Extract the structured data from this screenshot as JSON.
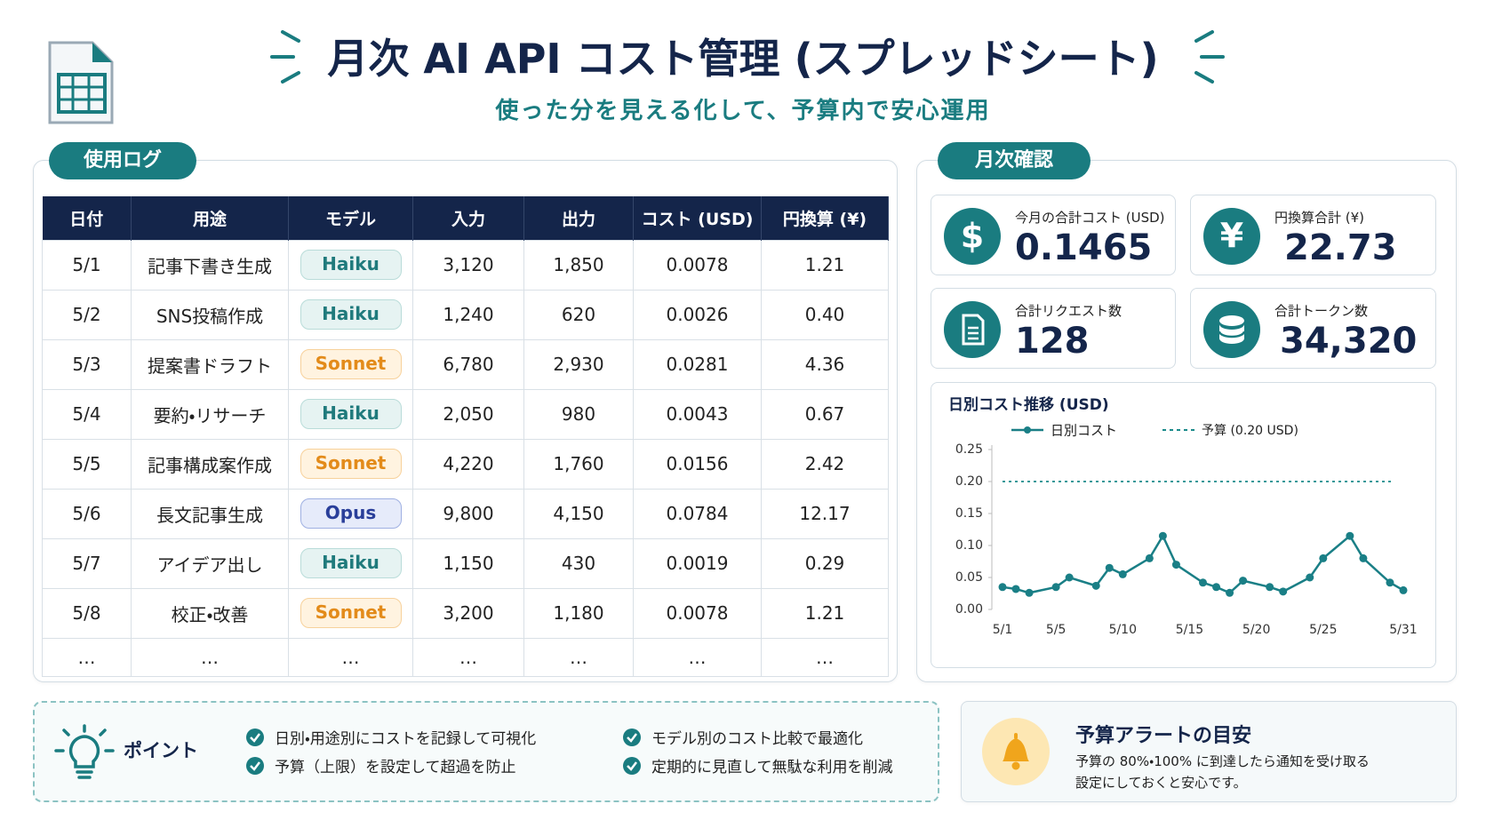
{
  "header": {
    "title": "月次 AI API コスト管理 (スプレッドシート)",
    "subtitle": "使った分を見える化して、予算内で安心運用"
  },
  "usage_log": {
    "label": "使用ログ",
    "table": {
      "columns": [
        "日付",
        "用途",
        "モデル",
        "入力",
        "出力",
        "コスト (USD)",
        "円換算 (¥)"
      ],
      "rows": [
        [
          "5/1",
          "記事下書き生成",
          "Haiku",
          "3,120",
          "1,850",
          "0.0078",
          "1.21"
        ],
        [
          "5/2",
          "SNS投稿作成",
          "Haiku",
          "1,240",
          "620",
          "0.0026",
          "0.40"
        ],
        [
          "5/3",
          "提案書ドラフト",
          "Sonnet",
          "6,780",
          "2,930",
          "0.0281",
          "4.36"
        ],
        [
          "5/4",
          "要約・リサーチ",
          "Haiku",
          "2,050",
          "980",
          "0.0043",
          "0.67"
        ],
        [
          "5/5",
          "記事構成案作成",
          "Sonnet",
          "4,220",
          "1,760",
          "0.0156",
          "2.42"
        ],
        [
          "5/6",
          "長文記事生成",
          "Opus",
          "9,800",
          "4,150",
          "0.0784",
          "12.17"
        ],
        [
          "5/7",
          "アイデア出し",
          "Haiku",
          "1,150",
          "430",
          "0.0019",
          "0.29"
        ],
        [
          "5/8",
          "校正・改善",
          "Sonnet",
          "3,200",
          "1,180",
          "0.0078",
          "1.21"
        ],
        [
          "…",
          "…",
          "…",
          "…",
          "…",
          "…",
          "…"
        ]
      ],
      "badge_colors": {
        "Haiku": {
          "bg": "#e6f3f2",
          "border": "#b9dcd9",
          "text": "#1f7a7c"
        },
        "Sonnet": {
          "bg": "#fff3e0",
          "border": "#f7d19b",
          "text": "#e38b1a"
        },
        "Opus": {
          "bg": "#e6ebfa",
          "border": "#9fb0e2",
          "text": "#2a3f9a"
        }
      }
    }
  },
  "monthly": {
    "label": "月次確認",
    "kpis": [
      {
        "icon": "$",
        "label": "今月の合計コスト (USD)",
        "value": "0.1465"
      },
      {
        "icon": "¥",
        "label": "円換算合計 (¥)",
        "value": "22.73"
      },
      {
        "label": "合計リクエスト数",
        "value": "128"
      },
      {
        "label": "合計トークン数",
        "value": "34,320"
      }
    ]
  },
  "chart_data": {
    "type": "line",
    "title": "日別コスト推移 (USD)",
    "x": [
      1,
      2,
      3,
      5,
      6,
      8,
      9,
      10,
      12,
      13,
      14,
      16,
      17,
      18,
      19,
      21,
      22,
      24,
      25,
      27,
      28,
      30,
      31
    ],
    "series": [
      {
        "name": "日別コスト",
        "color": "#1a7f86",
        "values": [
          0.035,
          0.032,
          0.026,
          0.035,
          0.05,
          0.037,
          0.065,
          0.055,
          0.08,
          0.115,
          0.07,
          0.042,
          0.035,
          0.026,
          0.045,
          0.035,
          0.028,
          0.05,
          0.08,
          0.115,
          0.08,
          0.042,
          0.03
        ]
      }
    ],
    "reference_lines": [
      {
        "name": "予算 (0.20 USD)",
        "value": 0.2,
        "color": "#1a8a8a"
      }
    ],
    "xlim": [
      1,
      31
    ],
    "xticks": [
      {
        "value": 1,
        "label": "5/1"
      },
      {
        "value": 5,
        "label": "5/5"
      },
      {
        "value": 10,
        "label": "5/10"
      },
      {
        "value": 15,
        "label": "5/15"
      },
      {
        "value": 20,
        "label": "5/20"
      },
      {
        "value": 25,
        "label": "5/25"
      },
      {
        "value": 31,
        "label": "5/31"
      }
    ],
    "ylim": [
      0,
      0.25
    ],
    "yticks": [
      {
        "value": 0,
        "label": "0.00"
      },
      0.05,
      {
        "value": 0.1,
        "label": "0.10"
      },
      0.15,
      {
        "value": 0.2,
        "label": "0.20"
      },
      0.25
    ],
    "grid": false
  },
  "points": {
    "label": "ポイント",
    "items": [
      "日別・用途別にコストを記録して可視化",
      "モデル別のコスト比較で最適化",
      "予算（上限）を設定して超過を防止",
      "定期的に見直して無駄な利用を削減"
    ]
  },
  "alert": {
    "title": "予算アラートの目安",
    "lines": [
      "予算の 80%・100% に到達したら通知を受け取る",
      "設定にしておくと安心です。"
    ]
  }
}
